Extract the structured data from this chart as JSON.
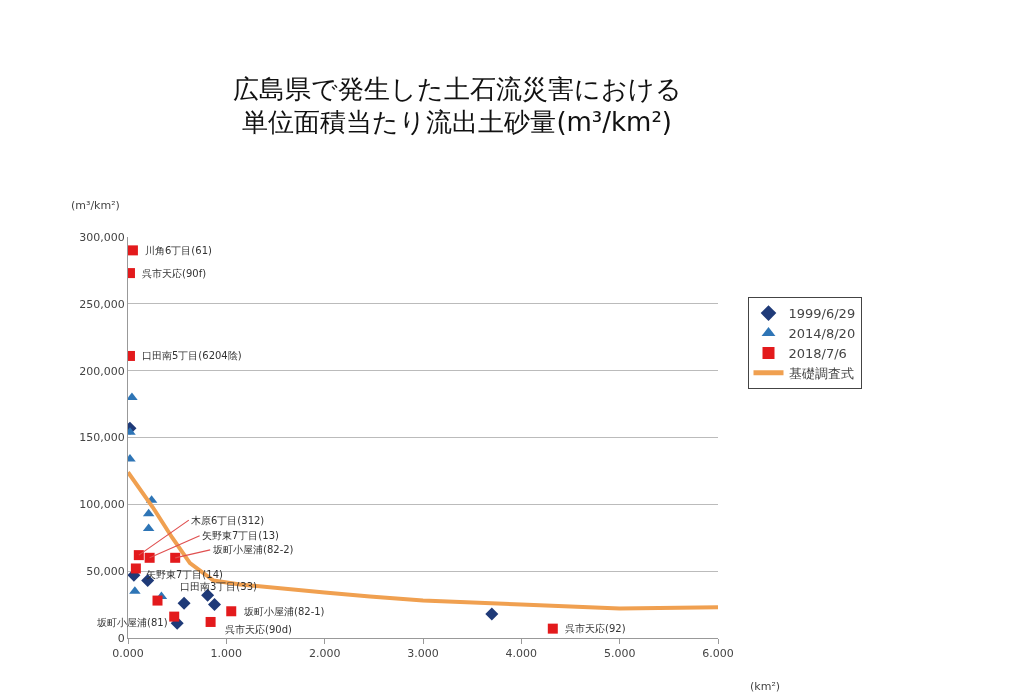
{
  "chart_data": {
    "type": "scatter",
    "title": "広島県で発生した土石流災害における単位面積当たり流出土砂量(m³/km²)",
    "ylabel": "(m³/km²)",
    "xlabel": "(km²)",
    "xlim": [
      0,
      6
    ],
    "xticks": [
      {
        "value": 0,
        "label": "0.000"
      },
      {
        "value": 1,
        "label": "1.000"
      },
      {
        "value": 2,
        "label": "2.000"
      },
      {
        "value": 3,
        "label": "3.000"
      },
      {
        "value": 4,
        "label": "4.000"
      },
      {
        "value": 5,
        "label": "5.000"
      },
      {
        "value": 6,
        "label": "6.000"
      }
    ],
    "ylim": [
      0,
      300000
    ],
    "yticks": [
      {
        "value": 0,
        "label": "0"
      },
      {
        "value": 50000,
        "label": "50,000"
      },
      {
        "value": 100000,
        "label": "100,000"
      },
      {
        "value": 150000,
        "label": "150,000"
      },
      {
        "value": 200000,
        "label": "200,000"
      },
      {
        "value": 250000,
        "label": "250,000"
      },
      {
        "value": 300000,
        "label": "300,000"
      }
    ],
    "grid": "y",
    "legend": "right",
    "series": [
      {
        "name": "1999/6/29",
        "type": "scatter",
        "marker": "diamond",
        "color": "#1f3a78",
        "x": [
          0.02,
          0.06,
          0.2,
          0.57,
          0.5,
          0.81,
          0.88,
          3.7
        ],
        "values": [
          157000,
          47000,
          43000,
          26000,
          11000,
          32000,
          25000,
          18000
        ]
      },
      {
        "name": "2014/8/20",
        "type": "scatter",
        "marker": "triangle",
        "color": "#2e75b6",
        "x": [
          0.04,
          0.02,
          0.02,
          0.24,
          0.21,
          0.21,
          0.07,
          0.34
        ],
        "values": [
          180000,
          154000,
          134000,
          103000,
          93000,
          82000,
          35000,
          31000
        ]
      },
      {
        "name": "2018/7/6",
        "type": "scatter",
        "marker": "square",
        "color": "#e31a1c",
        "x": [
          0.05,
          0.02,
          0.02,
          0.11,
          0.22,
          0.48,
          0.08,
          0.3,
          0.47,
          0.84,
          1.05,
          4.32
        ],
        "values": [
          290000,
          273000,
          211000,
          62000,
          60000,
          60000,
          52000,
          28000,
          16000,
          12000,
          20000,
          7000
        ]
      },
      {
        "name": "基礎調査式",
        "type": "line",
        "marker": "none",
        "line_style": "solid",
        "color": "#f0a050",
        "x": [
          0,
          0.25,
          0.45,
          0.63,
          0.87,
          1.14,
          2,
          2.46,
          3,
          4,
          5,
          6
        ],
        "values": [
          124000,
          98000,
          75000,
          56000,
          43000,
          40000,
          34000,
          31000,
          28000,
          25000,
          22000,
          23000
        ]
      }
    ],
    "annotations": [
      {
        "text": "川角6丁目(61)",
        "x": 0.05,
        "y": 290000
      },
      {
        "text": "呉市天応(90f)",
        "x": 0.02,
        "y": 273000
      },
      {
        "text": "口田南5丁目(6204陰)",
        "x": 0.02,
        "y": 211000
      },
      {
        "text": "木原6丁目(312)",
        "x": 0.11,
        "y": 62000
      },
      {
        "text": "矢野東7丁目(13)",
        "x": 0.22,
        "y": 60000
      },
      {
        "text": "坂町小屋浦(82-2)",
        "x": 0.48,
        "y": 60000
      },
      {
        "text": "矢野東7丁目(14)",
        "x": 0.08,
        "y": 52000
      },
      {
        "text": "口田南3丁目(33)",
        "x": 0.3,
        "y": 28000
      },
      {
        "text": "坂町小屋浦(81)",
        "x": 0.47,
        "y": 16000
      },
      {
        "text": "坂町小屋浦(82-1)",
        "x": 1.05,
        "y": 20000
      },
      {
        "text": "呉市天応(90d)",
        "x": 0.84,
        "y": 12000
      },
      {
        "text": "呉市天応(92)",
        "x": 4.32,
        "y": 7000
      }
    ]
  }
}
